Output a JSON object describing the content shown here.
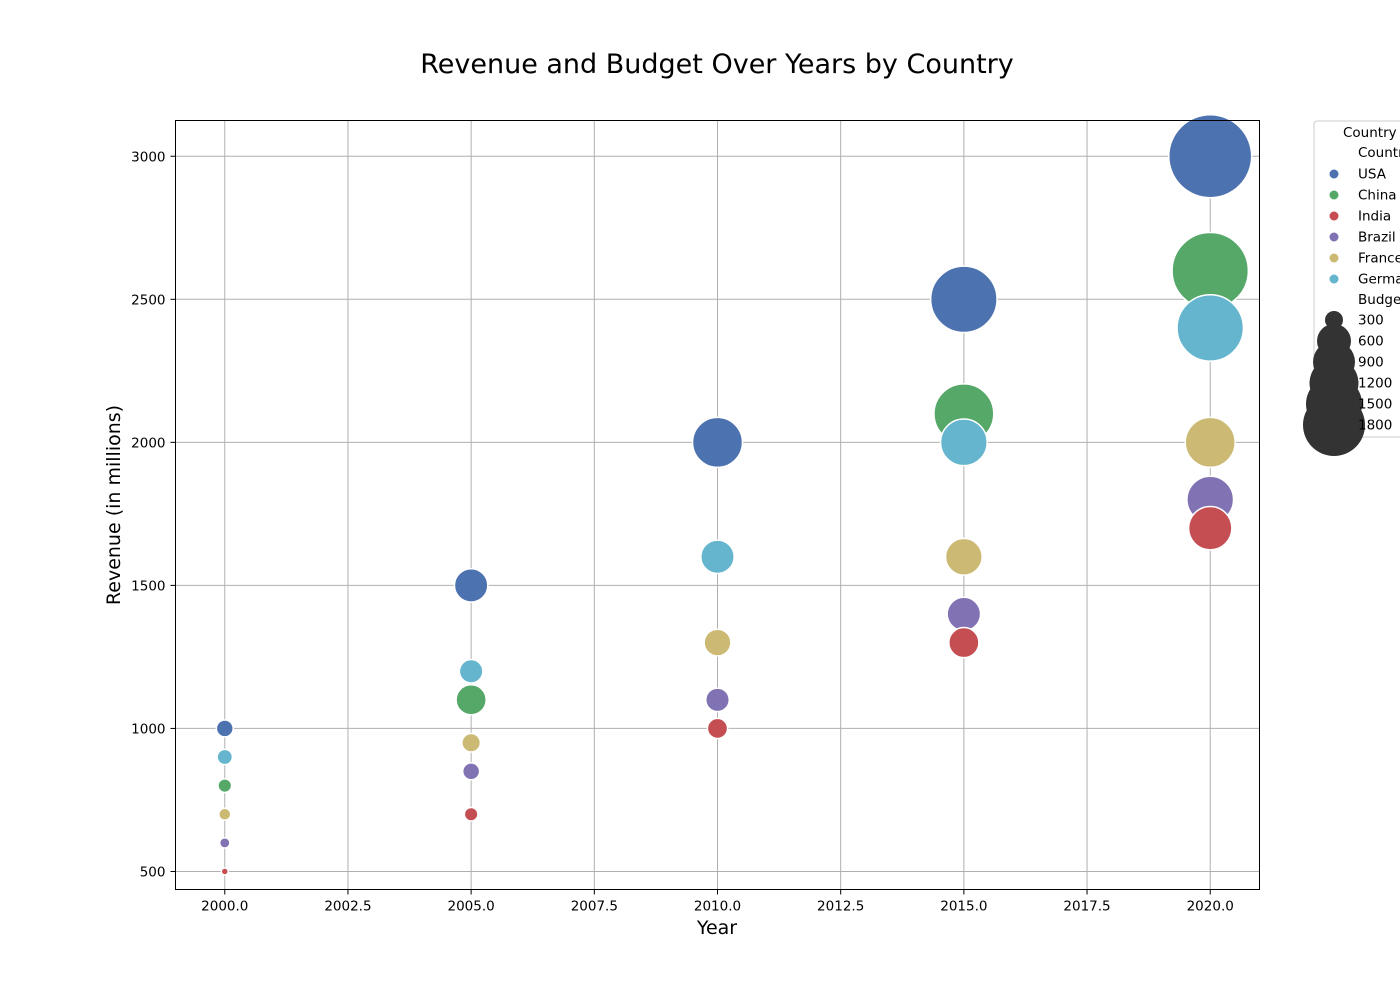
{
  "chart_data": {
    "type": "scatter",
    "title": "Revenue and Budget Over Years by Country",
    "xlabel": "Year",
    "ylabel": "Revenue (in millions)",
    "xlim": [
      1999,
      2021
    ],
    "ylim": [
      437,
      3125
    ],
    "xticks": [
      2000,
      2002.5,
      2005,
      2007.5,
      2010,
      2012.5,
      2015,
      2017.5,
      2020
    ],
    "xtick_labels": [
      "2000.0",
      "2002.5",
      "2005.0",
      "2007.5",
      "2010.0",
      "2012.5",
      "2015.0",
      "2017.5",
      "2020.0"
    ],
    "yticks": [
      500,
      1000,
      1500,
      2000,
      2500,
      3000
    ],
    "ytick_labels": [
      "500",
      "1000",
      "1500",
      "2000",
      "2500",
      "3000"
    ],
    "grid": true,
    "legend_position": "outside-right",
    "series": [
      {
        "name": "USA",
        "color": "#4c72b0",
        "x": [
          2000,
          2005,
          2010,
          2015,
          2020
        ],
        "y": [
          1000,
          1500,
          2000,
          2500,
          3000
        ],
        "budget": [
          500,
          1000,
          1500,
          2000,
          2500
        ]
      },
      {
        "name": "China",
        "color": "#55a868",
        "x": [
          2000,
          2005,
          2015,
          2020
        ],
        "y": [
          800,
          1100,
          2100,
          2600
        ],
        "budget": [
          400,
          900,
          1800,
          2300
        ]
      },
      {
        "name": "India",
        "color": "#c44e52",
        "x": [
          2000,
          2005,
          2010,
          2015,
          2020
        ],
        "y": [
          500,
          700,
          1000,
          1300,
          1700
        ],
        "budget": [
          200,
          400,
          600,
          900,
          1300
        ]
      },
      {
        "name": "Brazil",
        "color": "#8172b3",
        "x": [
          2000,
          2005,
          2010,
          2015,
          2020
        ],
        "y": [
          600,
          850,
          1100,
          1400,
          1800
        ],
        "budget": [
          300,
          500,
          700,
          1000,
          1400
        ]
      },
      {
        "name": "France",
        "color": "#ccb974",
        "x": [
          2000,
          2005,
          2010,
          2015,
          2020
        ],
        "y": [
          700,
          950,
          1300,
          1600,
          2000
        ],
        "budget": [
          350,
          550,
          800,
          1100,
          1500
        ]
      },
      {
        "name": "Germany",
        "color": "#64b5cd",
        "x": [
          2000,
          2005,
          2010,
          2015,
          2020
        ],
        "y": [
          900,
          1200,
          1600,
          2000,
          2400
        ],
        "budget": [
          450,
          700,
          1000,
          1400,
          2000
        ]
      }
    ],
    "legend": {
      "title": "Country",
      "hue_header": "Country",
      "size_header": "Budget",
      "size_entries": [
        300,
        600,
        900,
        1200,
        1500,
        1800
      ],
      "size_entry_labels": [
        "300",
        "600",
        "900",
        "1200",
        "1500",
        "1800"
      ],
      "marker_color": "#333333"
    }
  }
}
